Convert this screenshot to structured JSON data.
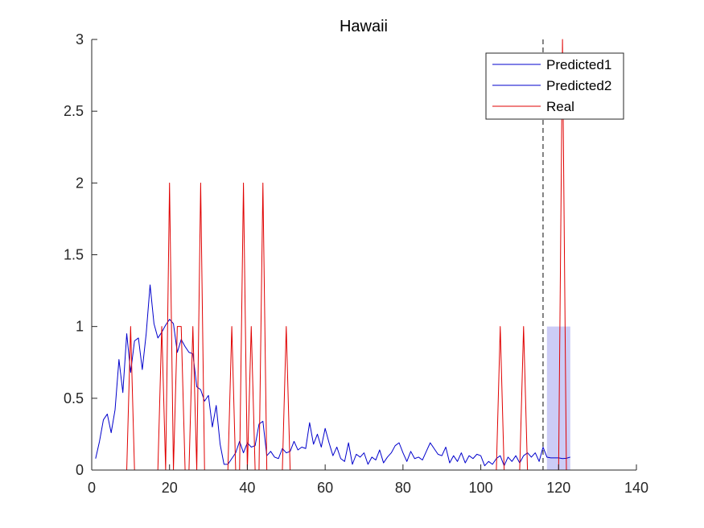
{
  "chart_data": {
    "type": "line",
    "title": "Hawaii",
    "xlabel": "",
    "ylabel": "",
    "xlim": [
      0,
      140
    ],
    "ylim": [
      0,
      3
    ],
    "x_ticks": [
      0,
      20,
      40,
      60,
      80,
      100,
      120,
      140
    ],
    "y_ticks": [
      0,
      0.5,
      1,
      1.5,
      2,
      2.5,
      3
    ],
    "x_tick_labels": [
      "0",
      "20",
      "40",
      "60",
      "80",
      "100",
      "120",
      "140"
    ],
    "y_tick_labels": [
      "0",
      "0.5",
      "1",
      "1.5",
      "2",
      "2.5",
      "3"
    ],
    "grid": false,
    "legend_position": "top-right",
    "forecast_start": 116,
    "shaded_region": {
      "x": [
        117,
        123
      ],
      "y": [
        0,
        1
      ],
      "color": "#c3c3f5"
    },
    "series": [
      {
        "name": "Predicted1",
        "color": "#0000cc",
        "x": [
          1,
          2,
          3,
          4,
          5,
          6,
          7,
          8,
          9,
          10,
          11,
          12,
          13,
          14,
          15,
          16,
          17,
          18,
          19,
          20,
          21,
          22,
          23,
          24,
          25,
          26,
          27,
          28,
          29,
          30,
          31,
          32,
          33,
          34,
          35,
          36,
          37,
          38,
          39,
          40,
          41,
          42,
          43,
          44,
          45,
          46,
          47,
          48,
          49,
          50,
          51,
          52,
          53,
          54,
          55,
          56,
          57,
          58,
          59,
          60,
          61,
          62,
          63,
          64,
          65,
          66,
          67,
          68,
          69,
          70,
          71,
          72,
          73,
          74,
          75,
          76,
          77,
          78,
          79,
          80,
          81,
          82,
          83,
          84,
          85,
          86,
          87,
          88,
          89,
          90,
          91,
          92,
          93,
          94,
          95,
          96,
          97,
          98,
          99,
          100,
          101,
          102,
          103,
          104,
          105,
          106,
          107,
          108,
          109,
          110,
          111,
          112,
          113,
          114,
          115,
          116
        ],
        "values": [
          0.08,
          0.2,
          0.35,
          0.39,
          0.26,
          0.42,
          0.77,
          0.54,
          0.95,
          0.68,
          0.9,
          0.92,
          0.7,
          0.95,
          1.29,
          1.02,
          0.92,
          0.96,
          1.01,
          1.05,
          1.02,
          0.82,
          0.91,
          0.86,
          0.82,
          0.81,
          0.58,
          0.56,
          0.48,
          0.52,
          0.3,
          0.45,
          0.18,
          0.04,
          0.04,
          0.08,
          0.12,
          0.2,
          0.12,
          0.19,
          0.16,
          0.17,
          0.32,
          0.34,
          0.1,
          0.13,
          0.09,
          0.08,
          0.15,
          0.12,
          0.13,
          0.2,
          0.14,
          0.16,
          0.15,
          0.33,
          0.18,
          0.25,
          0.16,
          0.29,
          0.19,
          0.1,
          0.16,
          0.08,
          0.06,
          0.19,
          0.04,
          0.11,
          0.09,
          0.12,
          0.04,
          0.09,
          0.07,
          0.14,
          0.05,
          0.09,
          0.12,
          0.17,
          0.19,
          0.12,
          0.06,
          0.13,
          0.08,
          0.09,
          0.07,
          0.13,
          0.19,
          0.15,
          0.11,
          0.1,
          0.16,
          0.05,
          0.1,
          0.06,
          0.12,
          0.05,
          0.1,
          0.08,
          0.11,
          0.1,
          0.03,
          0.06,
          0.04,
          0.08,
          0.1,
          0.03,
          0.09,
          0.06,
          0.1,
          0.05,
          0.1,
          0.12,
          0.09,
          0.12,
          0.06,
          0.16
        ]
      },
      {
        "name": "Predicted2",
        "color": "#0000cc",
        "x": [
          116,
          117,
          118,
          119,
          120,
          121,
          122,
          123
        ],
        "values": [
          0.16,
          0.09,
          0.085,
          0.085,
          0.085,
          0.08,
          0.082,
          0.09
        ]
      },
      {
        "name": "Real",
        "color": "#e00000",
        "x": [
          0,
          9,
          10,
          11,
          17,
          18,
          19,
          20,
          21,
          22,
          23,
          24,
          25,
          26,
          27,
          28,
          29,
          35,
          36,
          37,
          38,
          39,
          40,
          41,
          42,
          43,
          44,
          45,
          49,
          50,
          51,
          104,
          105,
          106,
          110,
          111,
          112,
          120,
          121,
          122,
          123
        ],
        "values": [
          0,
          0,
          1,
          0,
          0,
          1,
          0,
          2,
          0,
          1,
          1,
          0,
          0,
          1,
          0,
          2,
          0,
          0,
          1,
          0,
          0,
          2,
          0,
          1,
          0,
          0,
          2,
          0,
          0,
          1,
          0,
          0,
          1,
          0,
          0,
          1,
          0,
          0,
          3,
          0,
          0
        ]
      }
    ]
  }
}
